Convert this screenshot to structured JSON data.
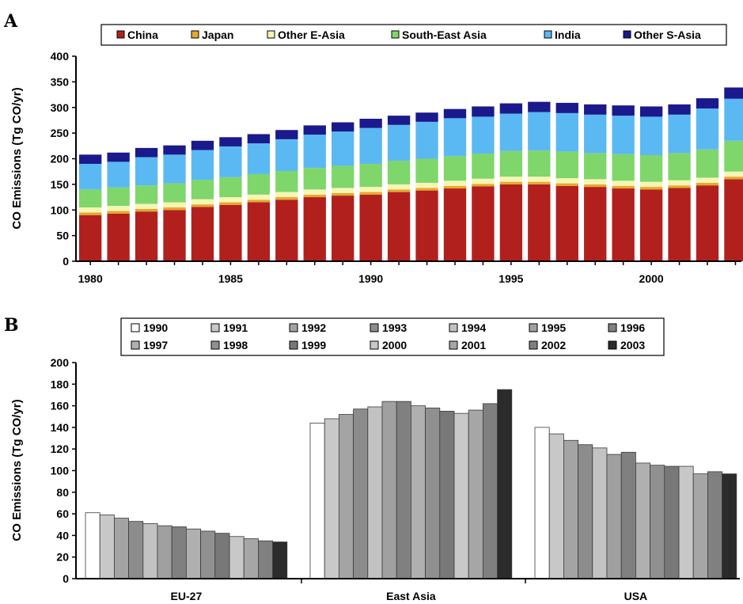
{
  "chart_data": [
    {
      "type": "bar",
      "stacked": true,
      "panel_label": "A",
      "ylabel": "CO Emissions (Tg CO/yr)",
      "xlabel": "",
      "ylim": [
        0,
        400
      ],
      "yticks": [
        0,
        50,
        100,
        150,
        200,
        250,
        300,
        350,
        400
      ],
      "xtick_labels": [
        "1980",
        "1985",
        "1990",
        "1995",
        "2000"
      ],
      "legend_position": "top",
      "categories": [
        1980,
        1981,
        1982,
        1983,
        1984,
        1985,
        1986,
        1987,
        1988,
        1989,
        1990,
        1991,
        1992,
        1993,
        1994,
        1995,
        1996,
        1997,
        1998,
        1999,
        2000,
        2001,
        2002,
        2003
      ],
      "series": [
        {
          "name": "China",
          "color": "#b2201e",
          "values": [
            90,
            93,
            97,
            100,
            106,
            110,
            115,
            120,
            125,
            128,
            130,
            135,
            138,
            142,
            146,
            150,
            150,
            147,
            145,
            142,
            140,
            143,
            148,
            160
          ]
        },
        {
          "name": "Japan",
          "color": "#e6a82e",
          "values": [
            5,
            5,
            5,
            5,
            5,
            5,
            5,
            5,
            5,
            5,
            5,
            5,
            5,
            5,
            5,
            5,
            5,
            5,
            5,
            5,
            5,
            5,
            5,
            5
          ]
        },
        {
          "name": "Other E-Asia",
          "color": "#f6f6b4",
          "values": [
            10,
            10,
            10,
            10,
            10,
            10,
            10,
            10,
            10,
            10,
            10,
            10,
            10,
            10,
            10,
            10,
            10,
            10,
            10,
            10,
            10,
            10,
            10,
            10
          ]
        },
        {
          "name": "South-East Asia",
          "color": "#7fd66a",
          "values": [
            35,
            36,
            36,
            37,
            38,
            39,
            40,
            41,
            42,
            43,
            45,
            46,
            47,
            48,
            49,
            50,
            51,
            52,
            51,
            52,
            52,
            53,
            55,
            60
          ]
        },
        {
          "name": "India",
          "color": "#5ab9f2",
          "values": [
            50,
            50,
            55,
            56,
            58,
            60,
            60,
            62,
            65,
            67,
            70,
            70,
            72,
            74,
            72,
            73,
            75,
            75,
            75,
            75,
            75,
            75,
            80,
            82
          ]
        },
        {
          "name": "Other S-Asia",
          "color": "#1a1a8c",
          "values": [
            18,
            18,
            18,
            18,
            18,
            18,
            18,
            18,
            18,
            18,
            18,
            18,
            18,
            18,
            20,
            20,
            20,
            20,
            20,
            20,
            20,
            20,
            20,
            22
          ]
        }
      ]
    },
    {
      "type": "bar",
      "panel_label": "B",
      "ylabel": "CO Emissions (Tg CO/yr)",
      "xlabel": "",
      "ylim": [
        0,
        200
      ],
      "yticks": [
        0,
        20,
        40,
        60,
        80,
        100,
        120,
        140,
        160,
        180,
        200
      ],
      "legend_position": "top",
      "categories": [
        "EU-27",
        "East Asia",
        "USA"
      ],
      "series": [
        {
          "name": "1990",
          "color": "#ffffff",
          "values": [
            61,
            144,
            140
          ]
        },
        {
          "name": "1991",
          "color": "#c8c8c8",
          "values": [
            59,
            148,
            134
          ]
        },
        {
          "name": "1992",
          "color": "#a4a4a4",
          "values": [
            56,
            152,
            128
          ]
        },
        {
          "name": "1993",
          "color": "#8c8c8c",
          "values": [
            53,
            157,
            124
          ]
        },
        {
          "name": "1994",
          "color": "#c2c2c2",
          "values": [
            51,
            159,
            121
          ]
        },
        {
          "name": "1995",
          "color": "#a0a0a0",
          "values": [
            49,
            164,
            115
          ]
        },
        {
          "name": "1996",
          "color": "#808080",
          "values": [
            48,
            164,
            117
          ]
        },
        {
          "name": "1997",
          "color": "#b0b0b0",
          "values": [
            46,
            160,
            107
          ]
        },
        {
          "name": "1998",
          "color": "#909090",
          "values": [
            44,
            158,
            105
          ]
        },
        {
          "name": "1999",
          "color": "#787878",
          "values": [
            42,
            155,
            104
          ]
        },
        {
          "name": "2000",
          "color": "#c8c8c8",
          "values": [
            39,
            153,
            104
          ]
        },
        {
          "name": "2001",
          "color": "#a6a6a6",
          "values": [
            37,
            156,
            97
          ]
        },
        {
          "name": "2002",
          "color": "#808080",
          "values": [
            35,
            162,
            99
          ]
        },
        {
          "name": "2003",
          "color": "#2b2b2b",
          "values": [
            34,
            175,
            97
          ]
        }
      ]
    }
  ]
}
